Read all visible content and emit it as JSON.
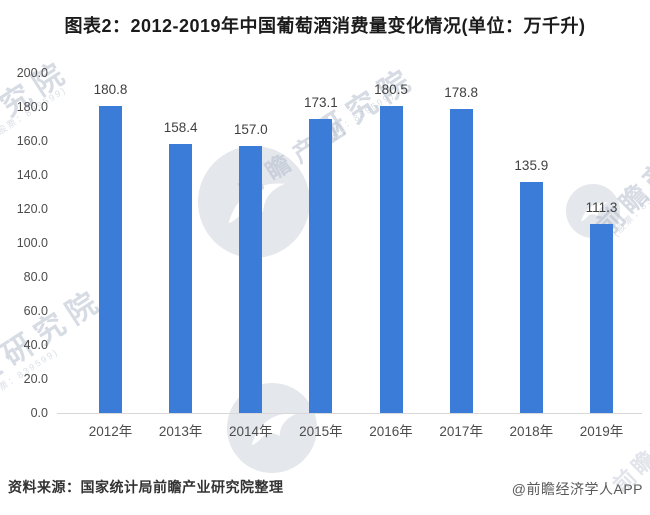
{
  "title": "图表2：2012-2019年中国葡萄酒消费量变化情况(单位：万千升)",
  "chart_data": {
    "type": "bar",
    "title": "图表2：2012-2019年中国葡萄酒消费量变化情况(单位：万千升)",
    "categories": [
      "2012年",
      "2013年",
      "2014年",
      "2015年",
      "2016年",
      "2017年",
      "2018年",
      "2019年"
    ],
    "values": [
      180.8,
      158.4,
      157.0,
      173.1,
      180.5,
      178.8,
      135.9,
      111.3
    ],
    "value_labels": [
      "180.8",
      "158.4",
      "157.0",
      "173.1",
      "180.5",
      "178.8",
      "135.9",
      "111.3"
    ],
    "yticks": [
      "0.0",
      "20.0",
      "40.0",
      "60.0",
      "80.0",
      "100.0",
      "120.0",
      "140.0",
      "160.0",
      "180.0",
      "200.0"
    ],
    "ylim": [
      0,
      200
    ],
    "ytick_step": 20,
    "xlabel": "",
    "ylabel": "",
    "grid": false,
    "legend": null,
    "bar_color": "#3B7CD8"
  },
  "footer": {
    "source": "资料来源：国家统计局前瞻产业研究院整理",
    "credit": "@前瞻经济学人APP"
  },
  "watermarks": {
    "inst": "研究院",
    "inst2": "产业研究院",
    "brand": "前瞻产业",
    "brand_short": "前瞻产",
    "stock": "(股票：839599)"
  },
  "colors": {
    "bar": "#3B7CD8",
    "axis_line": "#d8d8d8",
    "title_text": "#1b1b1b",
    "tick_text": "#4c4c4c",
    "value_text": "#3f3f3f",
    "source_text": "#333333",
    "credit_text": "#595959",
    "watermark": "#b6bfce"
  }
}
